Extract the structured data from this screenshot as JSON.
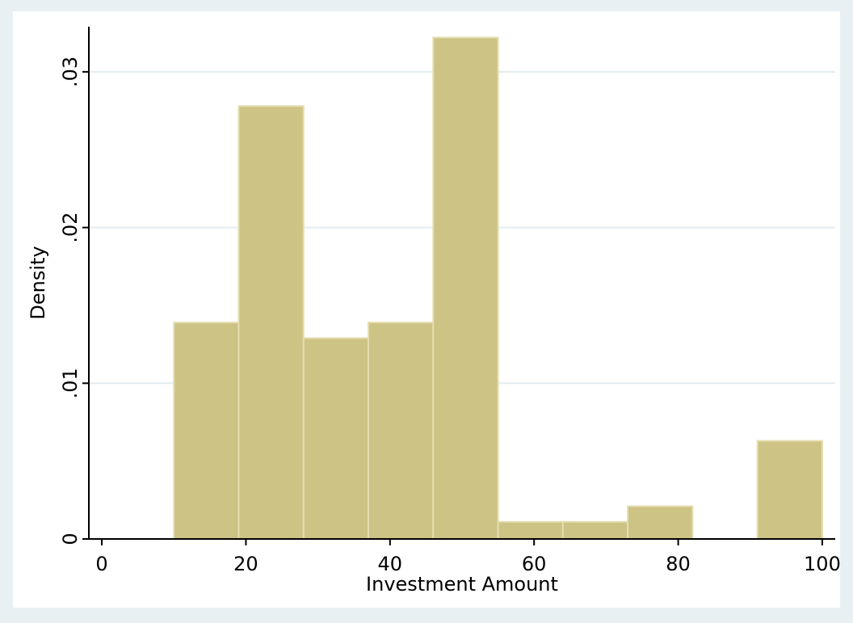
{
  "chart_data": {
    "type": "histogram",
    "x_label": "Investment Amount",
    "y_label": "Density",
    "bins": [
      10,
      19,
      28,
      37,
      46,
      55,
      64,
      73,
      82,
      91,
      100
    ],
    "values": [
      0.0139,
      0.0278,
      0.0129,
      0.0139,
      0.0322,
      0.0011,
      0.0011,
      0.0021,
      0,
      0.0063
    ],
    "color": "#cdc385",
    "xlim": [
      -1.8,
      101.8
    ],
    "xticks": [
      0,
      20,
      40,
      60,
      80,
      100
    ],
    "ylim": [
      0,
      0.0329
    ],
    "yticks": [
      0,
      {
        "value": 0.01,
        "label": ".01"
      },
      {
        "value": 0.02,
        "label": ".02"
      },
      {
        "value": 0.03,
        "label": ".03"
      }
    ],
    "grid": true
  }
}
